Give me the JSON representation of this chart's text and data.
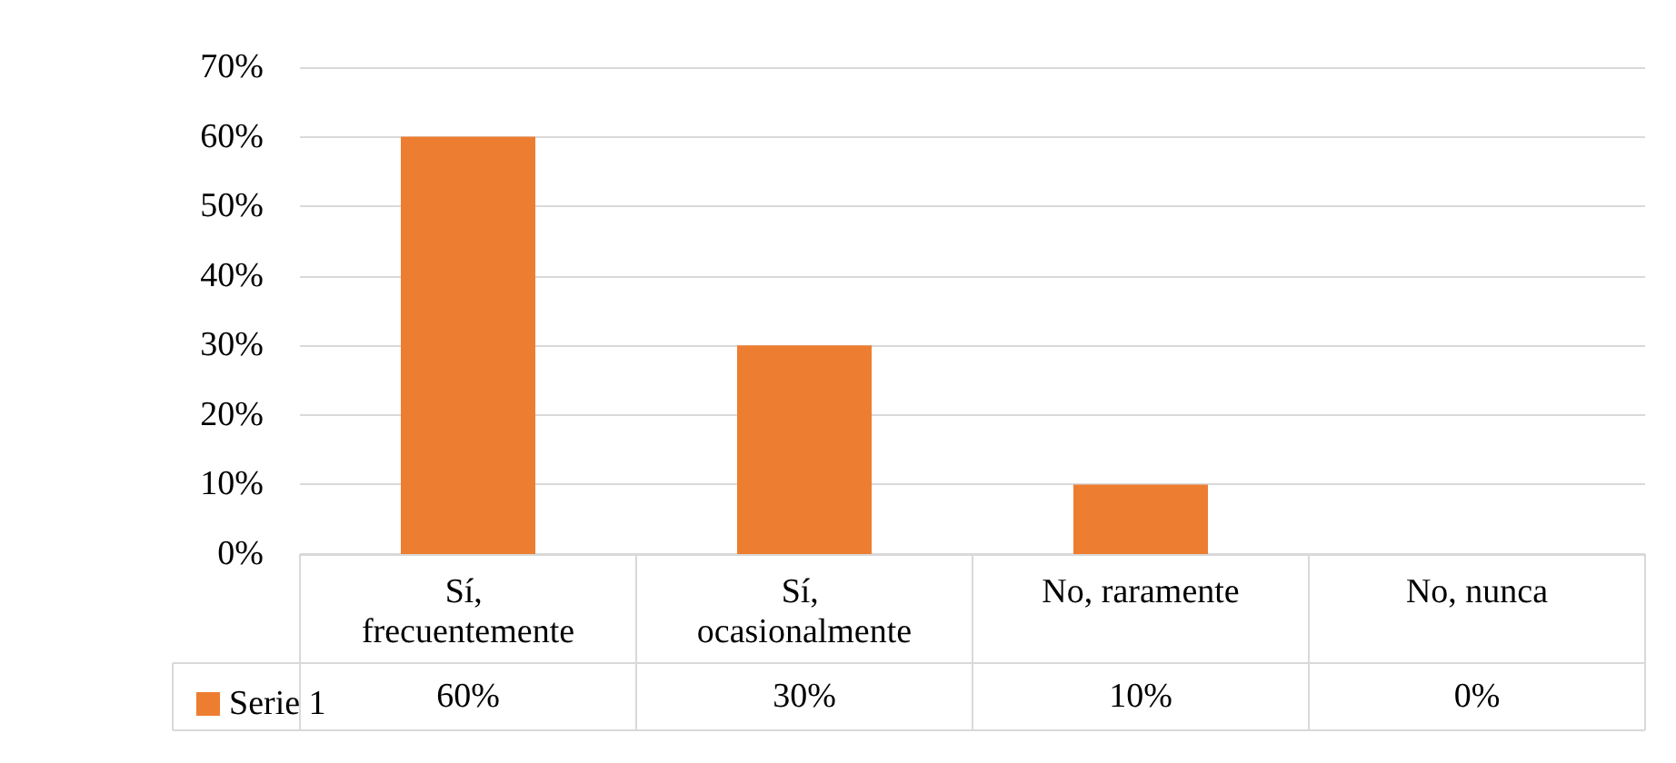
{
  "chart_data": {
    "type": "bar",
    "categories": [
      "Sí, frecuentemente",
      "Sí, ocasionalmente",
      "No, raramente",
      "No, nunca"
    ],
    "series": [
      {
        "name": "Serie 1",
        "color": "#ed7d31",
        "values": [
          60,
          30,
          10,
          0
        ],
        "value_labels": [
          "60%",
          "30%",
          "10%",
          "0%"
        ]
      }
    ],
    "ylim": [
      0,
      70
    ],
    "yticks": [
      {
        "value": 0,
        "label": "0%"
      },
      {
        "value": 10,
        "label": "10%"
      },
      {
        "value": 20,
        "label": "20%"
      },
      {
        "value": 30,
        "label": "30%"
      },
      {
        "value": 40,
        "label": "40%"
      },
      {
        "value": 50,
        "label": "50%"
      },
      {
        "value": 60,
        "label": "60%"
      },
      {
        "value": 70,
        "label": "70%"
      }
    ],
    "grid": "y",
    "legend": "bottom left"
  }
}
